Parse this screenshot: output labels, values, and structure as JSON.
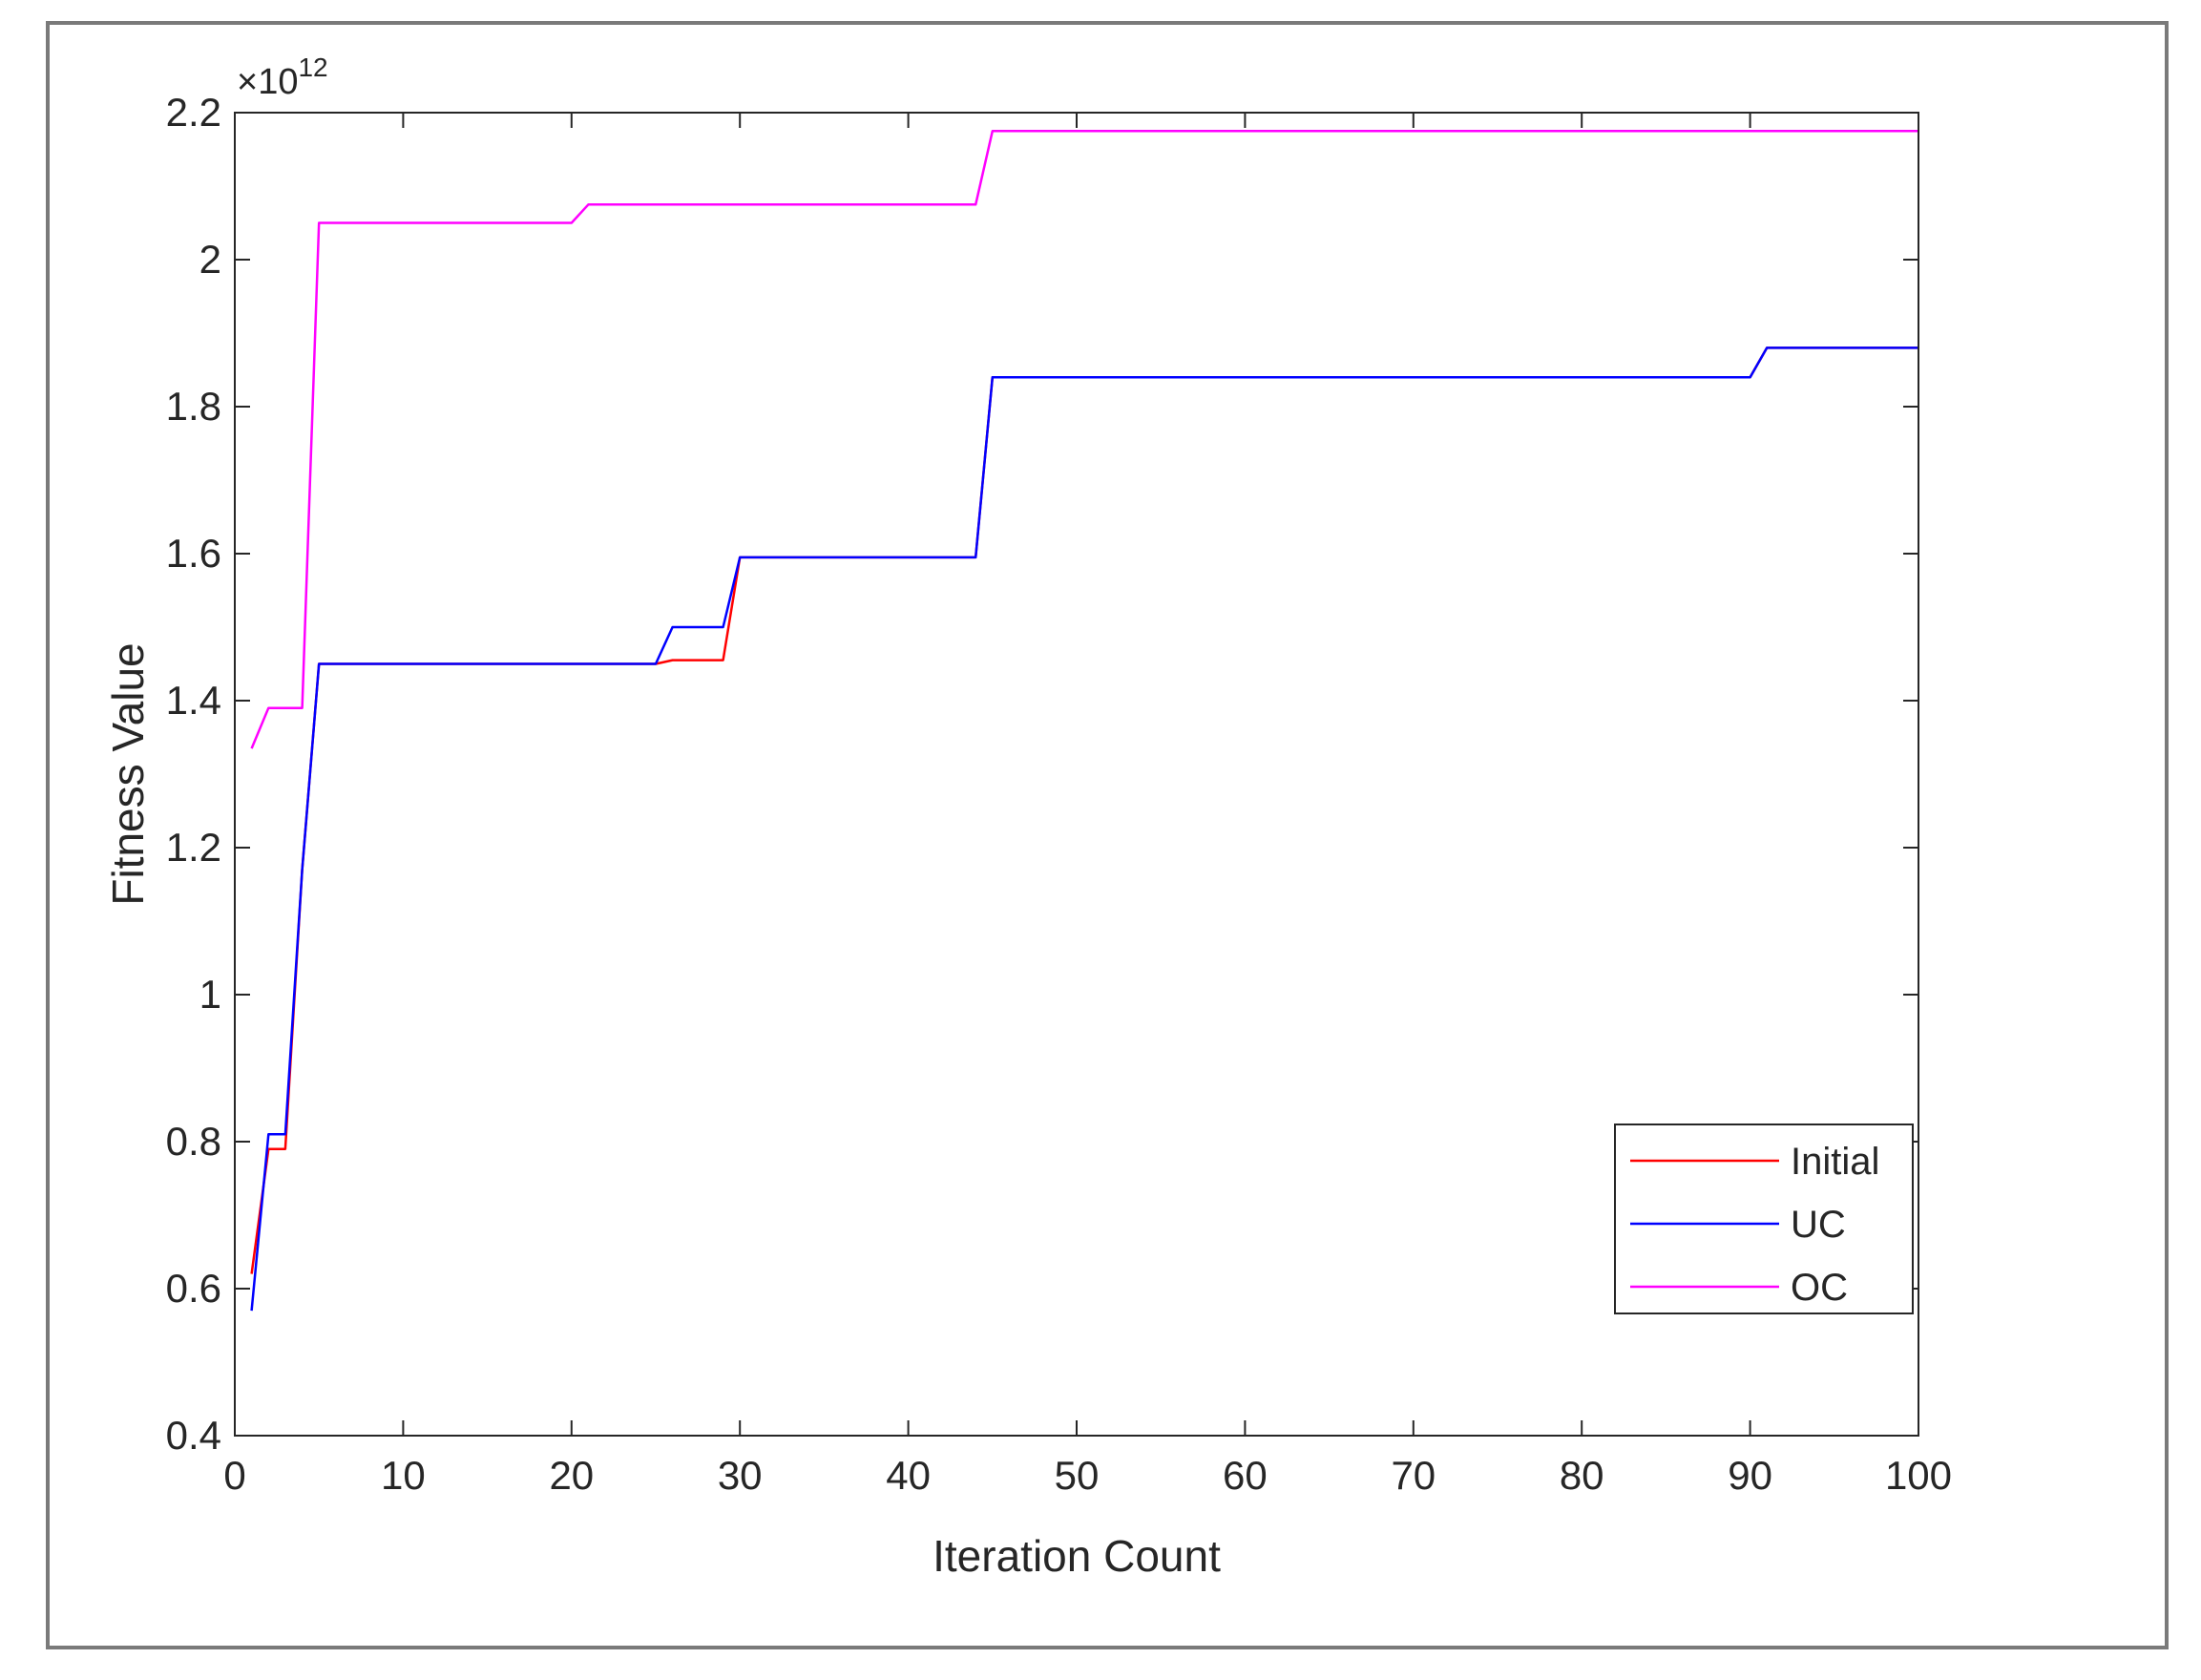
{
  "chart_data": {
    "type": "line",
    "xlabel": "Iteration Count",
    "ylabel": "Fitness Value",
    "xlim": [
      0,
      100
    ],
    "ylim": [
      0.4,
      2.2
    ],
    "x_ticks": [
      "0",
      "10",
      "20",
      "30",
      "40",
      "50",
      "60",
      "70",
      "80",
      "90",
      "100"
    ],
    "y_ticks": [
      "0.4",
      "0.6",
      "0.8",
      "1",
      "1.2",
      "1.4",
      "1.6",
      "1.8",
      "2",
      "2.2"
    ],
    "y_exponent_label": "×10",
    "y_exponent_power": "12",
    "legend_position": "lower-right",
    "grid": false,
    "series": [
      {
        "name": "Initial",
        "color": "#ff0000",
        "points": [
          [
            1,
            0.62
          ],
          [
            2,
            0.79
          ],
          [
            3,
            0.79
          ],
          [
            4,
            1.17
          ],
          [
            5,
            1.45
          ],
          [
            25,
            1.45
          ],
          [
            26,
            1.455
          ],
          [
            29,
            1.455
          ],
          [
            30,
            1.595
          ],
          [
            44,
            1.595
          ],
          [
            45,
            1.84
          ],
          [
            90,
            1.84
          ],
          [
            91,
            1.88
          ],
          [
            100,
            1.88
          ]
        ]
      },
      {
        "name": "UC",
        "color": "#0000ff",
        "points": [
          [
            1,
            0.57
          ],
          [
            2,
            0.81
          ],
          [
            3,
            0.81
          ],
          [
            4,
            1.17
          ],
          [
            5,
            1.45
          ],
          [
            25,
            1.45
          ],
          [
            26,
            1.5
          ],
          [
            29,
            1.5
          ],
          [
            30,
            1.595
          ],
          [
            44,
            1.595
          ],
          [
            45,
            1.84
          ],
          [
            90,
            1.84
          ],
          [
            91,
            1.88
          ],
          [
            100,
            1.88
          ]
        ]
      },
      {
        "name": "OC",
        "color": "#ff00ff",
        "points": [
          [
            1,
            1.335
          ],
          [
            2,
            1.39
          ],
          [
            3,
            1.39
          ],
          [
            4,
            1.39
          ],
          [
            5,
            2.05
          ],
          [
            20,
            2.05
          ],
          [
            21,
            2.075
          ],
          [
            44,
            2.075
          ],
          [
            45,
            2.175
          ],
          [
            100,
            2.175
          ]
        ]
      }
    ]
  }
}
